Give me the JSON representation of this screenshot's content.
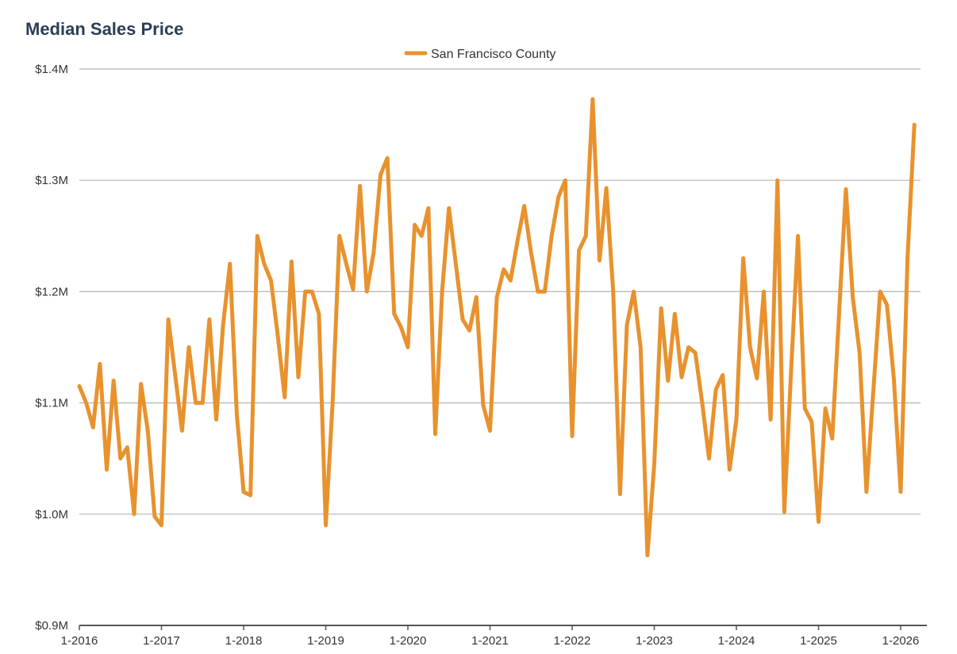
{
  "chart_data": {
    "type": "line",
    "title": "Median Sales Price",
    "xlabel": "",
    "ylabel": "",
    "legend_position": "top-center",
    "grid": true,
    "ylim": [
      900000,
      1400000
    ],
    "y_ticks": [
      {
        "value": 900000,
        "label": "$0.9M"
      },
      {
        "value": 1000000,
        "label": "$1.0M"
      },
      {
        "value": 1100000,
        "label": "$1.1M"
      },
      {
        "value": 1200000,
        "label": "$1.2M"
      },
      {
        "value": 1300000,
        "label": "$1.3M"
      },
      {
        "value": 1400000,
        "label": "$1.4M"
      }
    ],
    "x_ticks": [
      "1-2016",
      "1-2017",
      "1-2018",
      "1-2019",
      "1-2020",
      "1-2021",
      "1-2022",
      "1-2023",
      "1-2024",
      "1-2025",
      "1-2026"
    ],
    "x_start": "1-2016",
    "x_end": "3-2026",
    "series": [
      {
        "name": "San Francisco County",
        "color": "#e8922e",
        "values": [
          1115000,
          1100000,
          1078000,
          1135000,
          1040000,
          1120000,
          1050000,
          1060000,
          1000000,
          1117000,
          1075000,
          998000,
          990000,
          1175000,
          1125000,
          1075000,
          1150000,
          1100000,
          1100000,
          1175000,
          1085000,
          1170000,
          1225000,
          1090000,
          1020000,
          1017000,
          1250000,
          1225000,
          1210000,
          1160000,
          1105000,
          1227000,
          1123000,
          1200000,
          1200000,
          1180000,
          990000,
          1100000,
          1250000,
          1225000,
          1202000,
          1295000,
          1200000,
          1235000,
          1305000,
          1320000,
          1180000,
          1168000,
          1150000,
          1260000,
          1250000,
          1275000,
          1072000,
          1200000,
          1275000,
          1225000,
          1175000,
          1165000,
          1195000,
          1098000,
          1075000,
          1195000,
          1220000,
          1210000,
          1245000,
          1277000,
          1235000,
          1200000,
          1200000,
          1250000,
          1285000,
          1300000,
          1070000,
          1237000,
          1250000,
          1373000,
          1228000,
          1293000,
          1200000,
          1018000,
          1170000,
          1200000,
          1150000,
          963000,
          1045000,
          1185000,
          1120000,
          1180000,
          1123000,
          1150000,
          1145000,
          1100000,
          1050000,
          1112000,
          1125000,
          1040000,
          1085000,
          1230000,
          1150000,
          1122000,
          1200000,
          1085000,
          1300000,
          1002000,
          1130000,
          1250000,
          1095000,
          1083000,
          993000,
          1095000,
          1068000,
          1180000,
          1292000,
          1195000,
          1145000,
          1020000,
          1110000,
          1200000,
          1188000,
          1122000,
          1020000,
          1230000,
          1350000
        ]
      }
    ]
  }
}
